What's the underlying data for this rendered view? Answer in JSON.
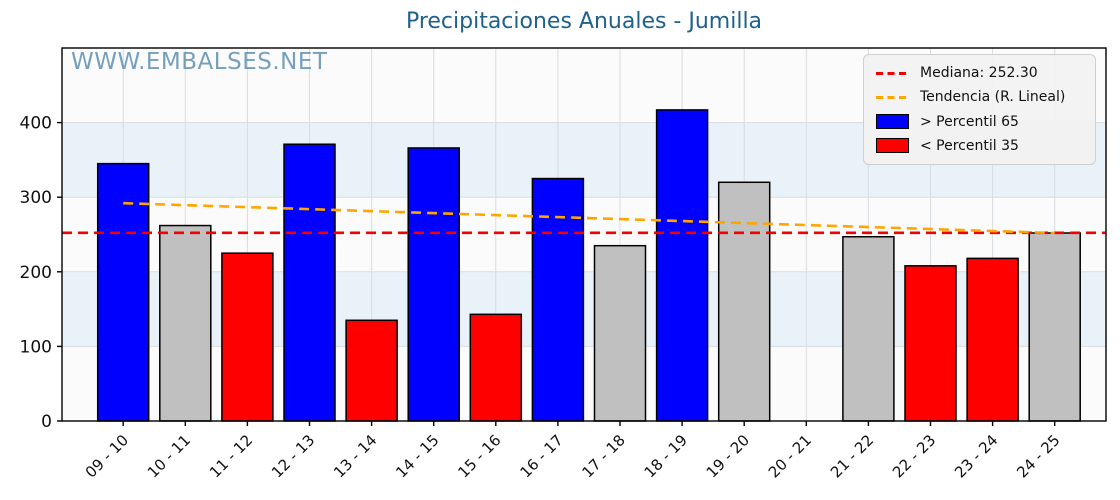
{
  "title": "Precipitaciones Anuales - Jumilla",
  "watermark": "WWW.EMBALSES.NET",
  "legend": {
    "median": "Mediana: 252.30",
    "trend": "Tendencia (R. Lineal)",
    "p65": "> Percentil 65",
    "p35": "< Percentil 35"
  },
  "colors": {
    "p65": "#0000ff",
    "p35": "#ff0000",
    "mid": "#c0c0c0",
    "bar_edge": "#000000",
    "median_line": "#f40000",
    "trend_line": "#ffa500",
    "title": "#1f618d",
    "watermark": "#5e90b1",
    "plot_bg": "#fbfbfb",
    "band": "#e9f2f8",
    "grid": "#d8dde1",
    "frame": "#000000",
    "tick_text": "#111111"
  },
  "chart_data": {
    "type": "bar",
    "title": "Precipitaciones Anuales - Jumilla",
    "xlabel": "",
    "ylabel": "",
    "categories": [
      "09 - 10",
      "10 - 11",
      "11 - 12",
      "12 - 13",
      "13 - 14",
      "14 - 15",
      "15 - 16",
      "16 - 17",
      "17 - 18",
      "18 - 19",
      "19 - 20",
      "20 - 21",
      "21 - 22",
      "22 - 23",
      "23 - 24",
      "24 - 25"
    ],
    "values": [
      345,
      262,
      225,
      371,
      135,
      366,
      143,
      325,
      235,
      417,
      320,
      null,
      247,
      208,
      218,
      252
    ],
    "bar_colors": [
      "p65",
      "mid",
      "p35",
      "p65",
      "p35",
      "p65",
      "p35",
      "p65",
      "mid",
      "p65",
      "mid",
      null,
      "mid",
      "p35",
      "p35",
      "mid"
    ],
    "median": {
      "label": "Mediana: 252.30",
      "value": 252.3
    },
    "trend": {
      "label": "Tendencia (R. Lineal)",
      "start": 292,
      "end": 252
    },
    "ylim": [
      0,
      500
    ],
    "yticks": [
      0,
      100,
      200,
      300,
      400
    ],
    "shaded_bands": [
      [
        100,
        200
      ],
      [
        300,
        400
      ]
    ],
    "grid": true,
    "legend_position": "upper right",
    "legend_entries": [
      "Mediana: 252.30",
      "Tendencia (R. Lineal)",
      "> Percentil 65",
      "< Percentil 35"
    ]
  }
}
